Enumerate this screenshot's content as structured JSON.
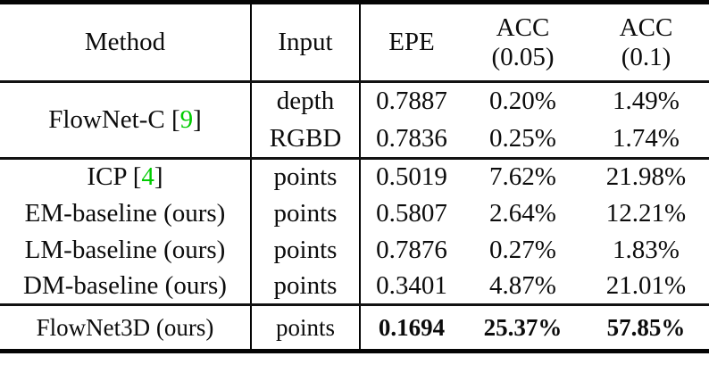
{
  "accent": {
    "citation_green": "#00cc00",
    "rule_color": "#050505"
  },
  "table": {
    "header": {
      "method": "Method",
      "input": "Input",
      "epe": "EPE",
      "acc005": {
        "line1": "ACC",
        "line2": "(0.05)"
      },
      "acc01": {
        "line1": "ACC",
        "line2": "(0.1)"
      }
    },
    "sections": [
      {
        "method_prefix": "FlowNet-C [",
        "citation": "9",
        "method_suffix": "]",
        "rows": [
          {
            "input": "depth",
            "epe": "0.7887",
            "acc005": "0.20%",
            "acc01": "1.49%"
          },
          {
            "input": "RGBD",
            "epe": "0.7836",
            "acc005": "0.25%",
            "acc01": "1.74%"
          }
        ]
      },
      {
        "rows": [
          {
            "method_prefix": "ICP [",
            "citation": "4",
            "method_suffix": "]",
            "input": "points",
            "epe": "0.5019",
            "acc005": "7.62%",
            "acc01": "21.98%"
          },
          {
            "method": "EM-baseline (ours)",
            "input": "points",
            "epe": "0.5807",
            "acc005": "2.64%",
            "acc01": "12.21%"
          },
          {
            "method": "LM-baseline (ours)",
            "input": "points",
            "epe": "0.7876",
            "acc005": "0.27%",
            "acc01": "1.83%"
          },
          {
            "method": "DM-baseline (ours)",
            "input": "points",
            "epe": "0.3401",
            "acc005": "4.87%",
            "acc01": "21.01%"
          }
        ]
      },
      {
        "rows": [
          {
            "method": "FlowNet3D (ours)",
            "input": "points",
            "epe": "0.1694",
            "acc005": "25.37%",
            "acc01": "57.85%"
          }
        ]
      }
    ]
  }
}
